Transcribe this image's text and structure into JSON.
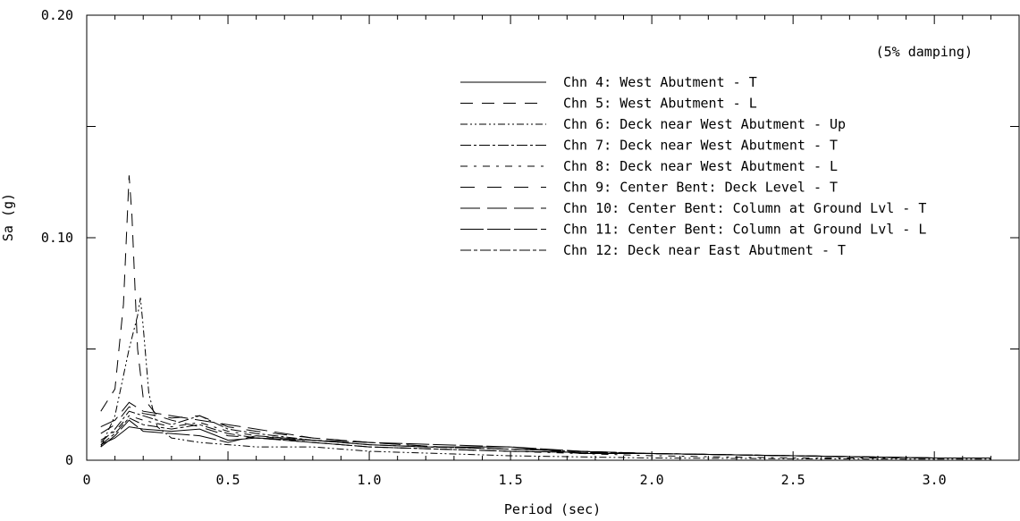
{
  "chart_data": {
    "type": "line",
    "title": "",
    "annotation": "(5% damping)",
    "xlabel": "Period (sec)",
    "ylabel": "Sa (g)",
    "xlim": [
      0,
      3.3
    ],
    "ylim": [
      0,
      0.2
    ],
    "x_ticks": [
      "0",
      "0.5",
      "1.0",
      "1.5",
      "2.0",
      "2.5",
      "3.0"
    ],
    "y_ticks": [
      "0",
      "0.10",
      "0.20"
    ],
    "grid": false,
    "legend_position": "top-right",
    "series": [
      {
        "name": "Chn 4: West Abutment - T",
        "dash": "",
        "points": [
          [
            0.05,
            0.007
          ],
          [
            0.1,
            0.01
          ],
          [
            0.15,
            0.015
          ],
          [
            0.2,
            0.014
          ],
          [
            0.3,
            0.013
          ],
          [
            0.4,
            0.014
          ],
          [
            0.5,
            0.009
          ],
          [
            0.6,
            0.01
          ],
          [
            0.8,
            0.009
          ],
          [
            1.0,
            0.007
          ],
          [
            1.2,
            0.006
          ],
          [
            1.5,
            0.006
          ],
          [
            1.75,
            0.003
          ],
          [
            2.0,
            0.003
          ],
          [
            2.5,
            0.002
          ],
          [
            3.0,
            0.001
          ],
          [
            3.2,
            0.001
          ]
        ]
      },
      {
        "name": "Chn 5: West Abutment - L",
        "dash": "14,10",
        "points": [
          [
            0.05,
            0.022
          ],
          [
            0.1,
            0.032
          ],
          [
            0.13,
            0.07
          ],
          [
            0.15,
            0.128
          ],
          [
            0.16,
            0.11
          ],
          [
            0.18,
            0.05
          ],
          [
            0.2,
            0.028
          ],
          [
            0.25,
            0.02
          ],
          [
            0.3,
            0.018
          ],
          [
            0.4,
            0.015
          ],
          [
            0.5,
            0.011
          ],
          [
            0.6,
            0.01
          ],
          [
            0.8,
            0.008
          ],
          [
            1.0,
            0.006
          ],
          [
            1.25,
            0.005
          ],
          [
            1.5,
            0.004
          ],
          [
            2.0,
            0.003
          ],
          [
            2.5,
            0.002
          ],
          [
            3.0,
            0.001
          ],
          [
            3.2,
            0.001
          ]
        ]
      },
      {
        "name": "Chn 6: Deck near West Abutment - Up",
        "dash": "8,3,2,3,2,3",
        "points": [
          [
            0.05,
            0.006
          ],
          [
            0.1,
            0.02
          ],
          [
            0.15,
            0.05
          ],
          [
            0.18,
            0.065
          ],
          [
            0.19,
            0.073
          ],
          [
            0.2,
            0.06
          ],
          [
            0.22,
            0.03
          ],
          [
            0.25,
            0.015
          ],
          [
            0.3,
            0.01
          ],
          [
            0.4,
            0.008
          ],
          [
            0.5,
            0.007
          ],
          [
            0.6,
            0.006
          ],
          [
            0.8,
            0.006
          ],
          [
            1.0,
            0.004
          ],
          [
            1.25,
            0.003
          ],
          [
            1.5,
            0.002
          ],
          [
            2.0,
            0.001
          ],
          [
            2.5,
            0.0007
          ],
          [
            3.0,
            0.0005
          ],
          [
            3.2,
            0.0005
          ]
        ]
      },
      {
        "name": "Chn 7: Deck near West Abutment - T",
        "dash": "12,3,3,3",
        "points": [
          [
            0.05,
            0.008
          ],
          [
            0.1,
            0.014
          ],
          [
            0.15,
            0.022
          ],
          [
            0.2,
            0.02
          ],
          [
            0.3,
            0.016
          ],
          [
            0.4,
            0.02
          ],
          [
            0.5,
            0.014
          ],
          [
            0.6,
            0.012
          ],
          [
            0.8,
            0.009
          ],
          [
            1.0,
            0.007
          ],
          [
            1.2,
            0.006
          ],
          [
            1.5,
            0.005
          ],
          [
            2.0,
            0.003
          ],
          [
            2.5,
            0.002
          ],
          [
            3.0,
            0.001
          ],
          [
            3.2,
            0.001
          ]
        ]
      },
      {
        "name": "Chn 8: Deck near West Abutment - L",
        "dash": "8,7,3,7",
        "points": [
          [
            0.05,
            0.009
          ],
          [
            0.1,
            0.013
          ],
          [
            0.15,
            0.02
          ],
          [
            0.2,
            0.018
          ],
          [
            0.3,
            0.015
          ],
          [
            0.4,
            0.017
          ],
          [
            0.5,
            0.013
          ],
          [
            0.6,
            0.011
          ],
          [
            0.8,
            0.008
          ],
          [
            1.0,
            0.006
          ],
          [
            1.25,
            0.005
          ],
          [
            1.5,
            0.004
          ],
          [
            2.0,
            0.002
          ],
          [
            2.5,
            0.001
          ],
          [
            3.0,
            0.001
          ],
          [
            3.2,
            0.001
          ]
        ]
      },
      {
        "name": "Chn 9: Center Bent: Deck Level - T",
        "dash": "16,14",
        "points": [
          [
            0.05,
            0.012
          ],
          [
            0.1,
            0.016
          ],
          [
            0.15,
            0.024
          ],
          [
            0.2,
            0.021
          ],
          [
            0.3,
            0.019
          ],
          [
            0.4,
            0.02
          ],
          [
            0.5,
            0.015
          ],
          [
            0.6,
            0.013
          ],
          [
            0.8,
            0.01
          ],
          [
            1.0,
            0.008
          ],
          [
            1.25,
            0.006
          ],
          [
            1.5,
            0.005
          ],
          [
            2.0,
            0.003
          ],
          [
            2.5,
            0.002
          ],
          [
            3.0,
            0.001
          ],
          [
            3.2,
            0.001
          ]
        ]
      },
      {
        "name": "Chn 10: Center Bent: Column at Ground Lvl - T",
        "dash": "22,8",
        "points": [
          [
            0.05,
            0.015
          ],
          [
            0.1,
            0.018
          ],
          [
            0.15,
            0.026
          ],
          [
            0.2,
            0.022
          ],
          [
            0.3,
            0.02
          ],
          [
            0.4,
            0.018
          ],
          [
            0.5,
            0.016
          ],
          [
            0.6,
            0.014
          ],
          [
            0.8,
            0.01
          ],
          [
            1.0,
            0.008
          ],
          [
            1.25,
            0.006
          ],
          [
            1.5,
            0.005
          ],
          [
            2.0,
            0.003
          ],
          [
            2.5,
            0.002
          ],
          [
            3.0,
            0.001
          ],
          [
            3.2,
            0.001
          ]
        ]
      },
      {
        "name": "Chn 11: Center Bent: Column at Ground Lvl - L",
        "dash": "26,4",
        "points": [
          [
            0.05,
            0.006
          ],
          [
            0.1,
            0.011
          ],
          [
            0.15,
            0.018
          ],
          [
            0.2,
            0.013
          ],
          [
            0.3,
            0.012
          ],
          [
            0.4,
            0.011
          ],
          [
            0.5,
            0.008
          ],
          [
            0.6,
            0.011
          ],
          [
            0.8,
            0.009
          ],
          [
            1.0,
            0.008
          ],
          [
            1.25,
            0.007
          ],
          [
            1.5,
            0.006
          ],
          [
            1.75,
            0.004
          ],
          [
            2.0,
            0.003
          ],
          [
            2.5,
            0.002
          ],
          [
            3.0,
            0.001
          ],
          [
            3.2,
            0.001
          ]
        ]
      },
      {
        "name": "Chn 12: Deck near East Abutment - T",
        "dash": "12,3,4,3",
        "points": [
          [
            0.05,
            0.007
          ],
          [
            0.1,
            0.012
          ],
          [
            0.15,
            0.019
          ],
          [
            0.2,
            0.016
          ],
          [
            0.3,
            0.014
          ],
          [
            0.4,
            0.016
          ],
          [
            0.5,
            0.012
          ],
          [
            0.6,
            0.01
          ],
          [
            0.8,
            0.008
          ],
          [
            1.0,
            0.006
          ],
          [
            1.25,
            0.005
          ],
          [
            1.5,
            0.004
          ],
          [
            2.0,
            0.003
          ],
          [
            2.5,
            0.002
          ],
          [
            3.0,
            0.001
          ],
          [
            3.2,
            0.001
          ]
        ]
      }
    ]
  }
}
